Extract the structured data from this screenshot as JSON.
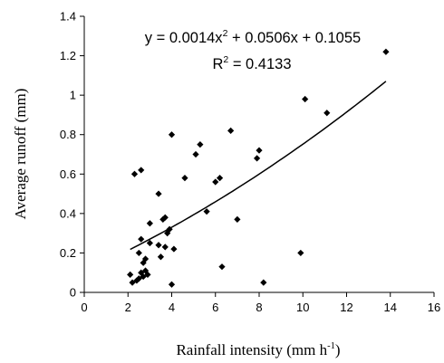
{
  "chart_data": {
    "type": "scatter",
    "title": "",
    "xlabel": "Rainfall intensity (mm h",
    "xlabel_sup": "-1",
    "xlabel_end": ")",
    "ylabel": "Average runoff (mm)",
    "xlim": [
      0,
      16
    ],
    "ylim": [
      0,
      1.4
    ],
    "x_ticks": [
      0,
      2,
      4,
      6,
      8,
      10,
      12,
      14,
      16
    ],
    "y_ticks": [
      0,
      0.2,
      0.4,
      0.6,
      0.8,
      1,
      1.2,
      1.4
    ],
    "x_tick_labels": [
      "0",
      "2",
      "4",
      "6",
      "8",
      "10",
      "12",
      "14",
      "16"
    ],
    "y_tick_labels": [
      "0",
      "0.2",
      "0.4",
      "0.6",
      "0.8",
      "1",
      "1.2",
      "1.4"
    ],
    "grid": false,
    "marker": "diamond",
    "colors": {
      "points": "#000000",
      "trendline": "#000000"
    },
    "trendline": {
      "type": "polynomial",
      "coefficients": [
        0.0014,
        0.0506,
        0.1055
      ],
      "x_range": [
        2.1,
        13.8
      ]
    },
    "annotations": {
      "equation_parts": [
        "y = 0.0014x",
        "2",
        " + 0.0506x + 0.1055"
      ],
      "r2_parts": [
        "R",
        "2",
        " = 0.4133"
      ]
    },
    "points": [
      {
        "x": 2.1,
        "y": 0.09
      },
      {
        "x": 2.2,
        "y": 0.05
      },
      {
        "x": 2.3,
        "y": 0.6
      },
      {
        "x": 2.4,
        "y": 0.06
      },
      {
        "x": 2.5,
        "y": 0.2
      },
      {
        "x": 2.5,
        "y": 0.07
      },
      {
        "x": 2.6,
        "y": 0.62
      },
      {
        "x": 2.6,
        "y": 0.27
      },
      {
        "x": 2.6,
        "y": 0.1
      },
      {
        "x": 2.7,
        "y": 0.15
      },
      {
        "x": 2.7,
        "y": 0.08
      },
      {
        "x": 2.8,
        "y": 0.17
      },
      {
        "x": 2.8,
        "y": 0.11
      },
      {
        "x": 2.9,
        "y": 0.09
      },
      {
        "x": 3.0,
        "y": 0.35
      },
      {
        "x": 3.0,
        "y": 0.25
      },
      {
        "x": 3.4,
        "y": 0.5
      },
      {
        "x": 3.4,
        "y": 0.24
      },
      {
        "x": 3.5,
        "y": 0.18
      },
      {
        "x": 3.6,
        "y": 0.37
      },
      {
        "x": 3.7,
        "y": 0.38
      },
      {
        "x": 3.7,
        "y": 0.23
      },
      {
        "x": 3.8,
        "y": 0.3
      },
      {
        "x": 3.9,
        "y": 0.32
      },
      {
        "x": 4.0,
        "y": 0.8
      },
      {
        "x": 4.0,
        "y": 0.04
      },
      {
        "x": 4.1,
        "y": 0.22
      },
      {
        "x": 4.6,
        "y": 0.58
      },
      {
        "x": 5.1,
        "y": 0.7
      },
      {
        "x": 5.3,
        "y": 0.75
      },
      {
        "x": 5.6,
        "y": 0.41
      },
      {
        "x": 6.0,
        "y": 0.56
      },
      {
        "x": 6.2,
        "y": 0.58
      },
      {
        "x": 6.3,
        "y": 0.13
      },
      {
        "x": 6.7,
        "y": 0.82
      },
      {
        "x": 7.0,
        "y": 0.37
      },
      {
        "x": 7.9,
        "y": 0.68
      },
      {
        "x": 8.0,
        "y": 0.72
      },
      {
        "x": 8.2,
        "y": 0.05
      },
      {
        "x": 9.9,
        "y": 0.2
      },
      {
        "x": 10.1,
        "y": 0.98
      },
      {
        "x": 11.1,
        "y": 0.91
      },
      {
        "x": 13.8,
        "y": 1.22
      }
    ]
  }
}
